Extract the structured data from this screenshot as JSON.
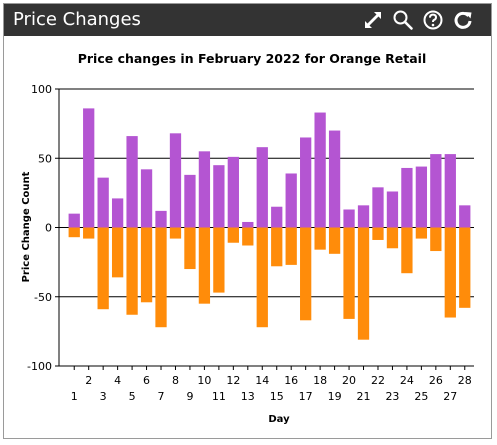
{
  "widget": {
    "title": "Price Changes",
    "toolbar": {
      "expand_icon": "expand-arrows-icon",
      "search_icon": "magnifier-icon",
      "help_icon": "question-circle-icon",
      "refresh_icon": "refresh-icon"
    }
  },
  "colors": {
    "header_bg": "#333333",
    "positive": "#b455d2",
    "negative": "#ff8c0a"
  },
  "chart_data": {
    "type": "bar",
    "title": "Price changes in February 2022 for Orange Retail",
    "xlabel": "Day",
    "ylabel": "Price Change Count",
    "ylim": [
      -100,
      100
    ],
    "yticks": [
      100,
      50,
      0,
      -50,
      -100
    ],
    "grid": true,
    "stacked": true,
    "categories": [
      "1",
      "2",
      "3",
      "4",
      "5",
      "6",
      "7",
      "8",
      "9",
      "10",
      "11",
      "12",
      "13",
      "14",
      "15",
      "16",
      "17",
      "18",
      "19",
      "20",
      "21",
      "22",
      "23",
      "24",
      "25",
      "26",
      "27",
      "28"
    ],
    "series": [
      {
        "values": [
          10,
          86,
          36,
          21,
          66,
          42,
          12,
          68,
          38,
          55,
          45,
          51,
          4,
          58,
          15,
          39,
          65,
          83,
          70,
          13,
          16,
          29,
          26,
          43,
          44,
          53,
          53,
          16
        ]
      },
      {
        "values": [
          -7,
          -8,
          -59,
          -36,
          -63,
          -54,
          -72,
          -8,
          -30,
          -55,
          -47,
          -11,
          -13,
          -72,
          -28,
          -27,
          -67,
          -16,
          -19,
          -66,
          -81,
          -9,
          -15,
          -33,
          -8,
          -17,
          -65,
          -58
        ]
      }
    ]
  }
}
